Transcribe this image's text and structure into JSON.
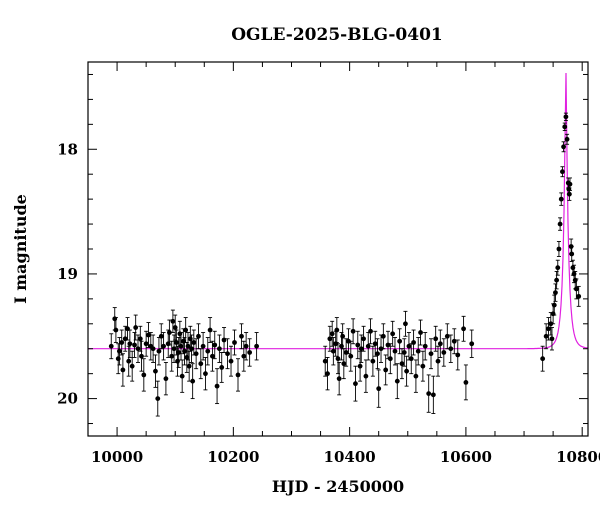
{
  "chart_data": {
    "type": "scatter",
    "title": "OGLE-2025-BLG-0401",
    "xlabel": "HJD - 2450000",
    "ylabel": "I magnitude",
    "xlim": [
      9950,
      10810
    ],
    "ylim": [
      20.3,
      17.3
    ],
    "y_inverted": true,
    "xticks_major": [
      10000,
      10200,
      10400,
      10600,
      10800
    ],
    "xtick_labels": [
      "10000",
      "10200",
      "10400",
      "10600",
      "10800"
    ],
    "yticks_major": [
      18,
      19,
      20
    ],
    "ytick_labels": [
      "18",
      "19",
      "20"
    ],
    "grid": false,
    "legend": "none",
    "colors": {
      "points": "#000000",
      "model": "#e020e0"
    },
    "model": {
      "type": "paczynski",
      "baseline_mag": 19.6,
      "t0": 10772,
      "tE": 9,
      "u0": 0.13,
      "color": "#e020e0"
    },
    "series": [
      {
        "marker": "filled-circle",
        "color": "#000000",
        "points": [
          [
            9990,
            19.58,
            0.1
          ],
          [
            9996,
            19.36,
            0.09
          ],
          [
            9998,
            19.45,
            0.1
          ],
          [
            10002,
            19.68,
            0.12
          ],
          [
            10004,
            19.62,
            0.11
          ],
          [
            10008,
            19.55,
            0.1
          ],
          [
            10010,
            19.77,
            0.13
          ],
          [
            10014,
            19.52,
            0.1
          ],
          [
            10018,
            19.44,
            0.09
          ],
          [
            10020,
            19.7,
            0.12
          ],
          [
            10022,
            19.56,
            0.11
          ],
          [
            10026,
            19.74,
            0.12
          ],
          [
            10030,
            19.57,
            0.1
          ],
          [
            10032,
            19.43,
            0.1
          ],
          [
            10036,
            19.6,
            0.11
          ],
          [
            10040,
            19.52,
            0.1
          ],
          [
            10042,
            19.66,
            0.12
          ],
          [
            10046,
            19.81,
            0.13
          ],
          [
            10050,
            19.56,
            0.1
          ],
          [
            10054,
            19.49,
            0.1
          ],
          [
            10058,
            19.58,
            0.11
          ],
          [
            10062,
            19.6,
            0.11
          ],
          [
            10066,
            19.78,
            0.13
          ],
          [
            10070,
            20.0,
            0.14
          ],
          [
            10072,
            19.62,
            0.11
          ],
          [
            10076,
            19.5,
            0.1
          ],
          [
            10080,
            19.58,
            0.11
          ],
          [
            10084,
            19.84,
            0.13
          ],
          [
            10088,
            19.56,
            0.11
          ],
          [
            10090,
            19.47,
            0.1
          ],
          [
            10094,
            19.66,
            0.12
          ],
          [
            10096,
            19.38,
            0.09
          ],
          [
            10098,
            19.6,
            0.11
          ],
          [
            10100,
            19.43,
            0.1
          ],
          [
            10102,
            19.55,
            0.1
          ],
          [
            10104,
            19.7,
            0.12
          ],
          [
            10106,
            19.63,
            0.12
          ],
          [
            10108,
            19.48,
            0.1
          ],
          [
            10110,
            19.58,
            0.11
          ],
          [
            10112,
            19.82,
            0.13
          ],
          [
            10114,
            19.54,
            0.1
          ],
          [
            10116,
            19.62,
            0.11
          ],
          [
            10118,
            19.45,
            0.1
          ],
          [
            10120,
            19.67,
            0.12
          ],
          [
            10122,
            19.58,
            0.11
          ],
          [
            10124,
            19.74,
            0.12
          ],
          [
            10126,
            19.52,
            0.1
          ],
          [
            10128,
            19.6,
            0.11
          ],
          [
            10130,
            19.86,
            0.14
          ],
          [
            10132,
            19.55,
            0.1
          ],
          [
            10136,
            19.64,
            0.12
          ],
          [
            10140,
            19.5,
            0.1
          ],
          [
            10144,
            19.72,
            0.12
          ],
          [
            10148,
            19.58,
            0.11
          ],
          [
            10152,
            19.8,
            0.13
          ],
          [
            10156,
            19.62,
            0.11
          ],
          [
            10160,
            19.45,
            0.1
          ],
          [
            10164,
            19.66,
            0.12
          ],
          [
            10168,
            19.57,
            0.11
          ],
          [
            10172,
            19.9,
            0.14
          ],
          [
            10176,
            19.6,
            0.11
          ],
          [
            10180,
            19.75,
            0.12
          ],
          [
            10184,
            19.53,
            0.1
          ],
          [
            10190,
            19.64,
            0.12
          ],
          [
            10196,
            19.7,
            0.12
          ],
          [
            10202,
            19.55,
            0.1
          ],
          [
            10208,
            19.81,
            0.13
          ],
          [
            10214,
            19.5,
            0.1
          ],
          [
            10218,
            19.66,
            0.12
          ],
          [
            10222,
            19.58,
            0.11
          ],
          [
            10228,
            19.63,
            0.11
          ],
          [
            10240,
            19.58,
            0.11
          ],
          [
            10358,
            19.7,
            0.12
          ],
          [
            10362,
            19.8,
            0.13
          ],
          [
            10366,
            19.52,
            0.1
          ],
          [
            10370,
            19.48,
            0.1
          ],
          [
            10372,
            19.62,
            0.11
          ],
          [
            10376,
            19.56,
            0.1
          ],
          [
            10378,
            19.45,
            0.1
          ],
          [
            10380,
            19.68,
            0.12
          ],
          [
            10382,
            19.84,
            0.13
          ],
          [
            10386,
            19.58,
            0.11
          ],
          [
            10388,
            19.5,
            0.1
          ],
          [
            10390,
            19.72,
            0.12
          ],
          [
            10394,
            19.63,
            0.11
          ],
          [
            10398,
            19.54,
            0.1
          ],
          [
            10402,
            19.66,
            0.12
          ],
          [
            10406,
            19.46,
            0.1
          ],
          [
            10410,
            19.88,
            0.14
          ],
          [
            10414,
            19.57,
            0.11
          ],
          [
            10418,
            19.74,
            0.12
          ],
          [
            10420,
            19.6,
            0.11
          ],
          [
            10424,
            19.52,
            0.1
          ],
          [
            10428,
            19.82,
            0.13
          ],
          [
            10432,
            19.58,
            0.11
          ],
          [
            10436,
            19.46,
            0.1
          ],
          [
            10440,
            19.7,
            0.12
          ],
          [
            10444,
            19.56,
            0.1
          ],
          [
            10448,
            19.64,
            0.12
          ],
          [
            10450,
            19.92,
            0.15
          ],
          [
            10454,
            19.6,
            0.11
          ],
          [
            10458,
            19.5,
            0.1
          ],
          [
            10462,
            19.77,
            0.12
          ],
          [
            10466,
            19.57,
            0.11
          ],
          [
            10470,
            19.68,
            0.12
          ],
          [
            10474,
            19.48,
            0.1
          ],
          [
            10478,
            19.62,
            0.11
          ],
          [
            10482,
            19.86,
            0.14
          ],
          [
            10486,
            19.54,
            0.1
          ],
          [
            10490,
            19.72,
            0.12
          ],
          [
            10494,
            19.63,
            0.11
          ],
          [
            10496,
            19.4,
            0.1
          ],
          [
            10498,
            19.78,
            0.12
          ],
          [
            10502,
            19.58,
            0.11
          ],
          [
            10506,
            19.68,
            0.12
          ],
          [
            10510,
            19.55,
            0.1
          ],
          [
            10514,
            19.82,
            0.13
          ],
          [
            10518,
            19.62,
            0.11
          ],
          [
            10522,
            19.47,
            0.1
          ],
          [
            10526,
            19.74,
            0.12
          ],
          [
            10530,
            19.58,
            0.11
          ],
          [
            10536,
            19.96,
            0.15
          ],
          [
            10540,
            19.64,
            0.12
          ],
          [
            10544,
            19.97,
            0.15
          ],
          [
            10548,
            19.52,
            0.1
          ],
          [
            10552,
            19.7,
            0.12
          ],
          [
            10556,
            19.56,
            0.11
          ],
          [
            10562,
            19.63,
            0.11
          ],
          [
            10568,
            19.5,
            0.1
          ],
          [
            10574,
            19.6,
            0.11
          ],
          [
            10580,
            19.54,
            0.1
          ],
          [
            10586,
            19.65,
            0.12
          ],
          [
            10596,
            19.44,
            0.1
          ],
          [
            10600,
            19.87,
            0.14
          ],
          [
            10610,
            19.56,
            0.11
          ],
          [
            10732,
            19.68,
            0.1
          ],
          [
            10738,
            19.5,
            0.1
          ],
          [
            10742,
            19.44,
            0.09
          ],
          [
            10746,
            19.4,
            0.09
          ],
          [
            10748,
            19.52,
            0.09
          ],
          [
            10750,
            19.32,
            0.08
          ],
          [
            10752,
            19.25,
            0.08
          ],
          [
            10754,
            19.15,
            0.07
          ],
          [
            10756,
            19.05,
            0.07
          ],
          [
            10758,
            18.95,
            0.06
          ],
          [
            10760,
            18.8,
            0.06
          ],
          [
            10762,
            18.6,
            0.05
          ],
          [
            10764,
            18.4,
            0.05
          ],
          [
            10766,
            18.18,
            0.04
          ],
          [
            10768,
            17.98,
            0.04
          ],
          [
            10770,
            17.82,
            0.03
          ],
          [
            10772,
            17.74,
            0.03
          ],
          [
            10774,
            17.92,
            0.04
          ],
          [
            10776,
            18.27,
            0.04
          ],
          [
            10777,
            18.32,
            0.04
          ],
          [
            10778,
            18.36,
            0.05
          ],
          [
            10779,
            18.28,
            0.05
          ],
          [
            10781,
            18.78,
            0.06
          ],
          [
            10782,
            18.84,
            0.06
          ],
          [
            10784,
            18.95,
            0.06
          ],
          [
            10786,
            19.0,
            0.07
          ],
          [
            10788,
            19.05,
            0.07
          ],
          [
            10790,
            19.12,
            0.08
          ],
          [
            10794,
            19.18,
            0.08
          ]
        ]
      }
    ]
  }
}
